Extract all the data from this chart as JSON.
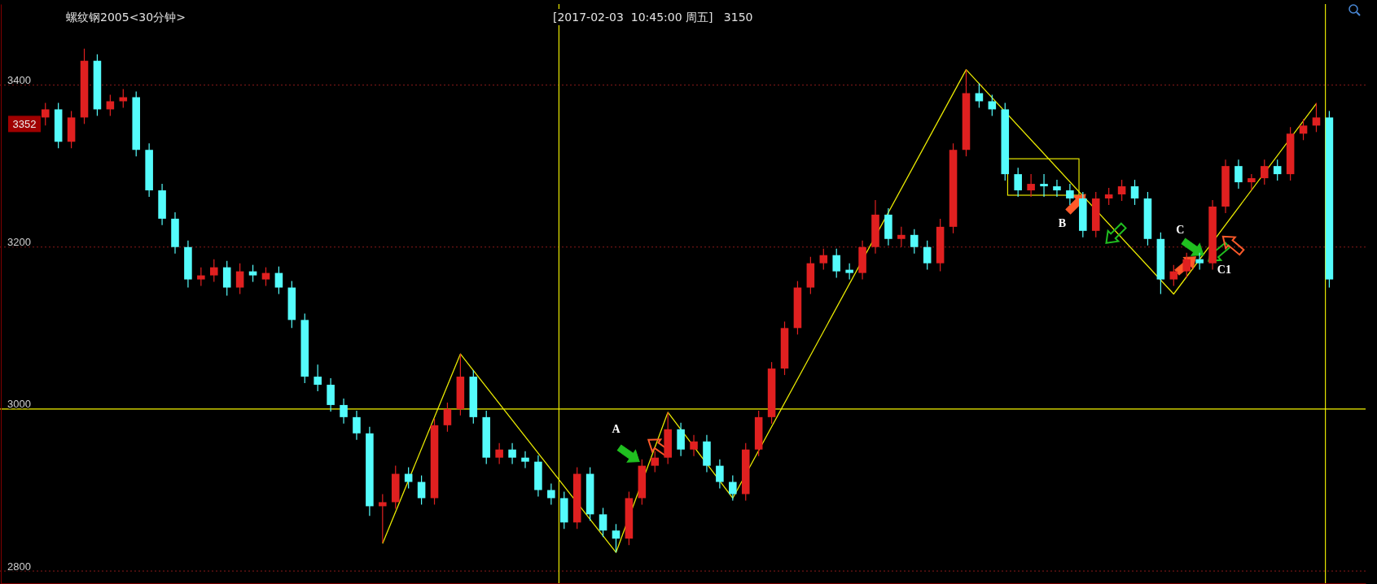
{
  "chart_data": {
    "type": "candlestick",
    "title": "螺纹钢2005<30分钟>",
    "subtitle": "[2017-02-03  10:45:00 周五]   3150",
    "categories": [
      null,
      null,
      null,
      null,
      null,
      null,
      null,
      null,
      null,
      null,
      null,
      null,
      null,
      null,
      null,
      null,
      null,
      null,
      null,
      null,
      null,
      null,
      null,
      null,
      null,
      null,
      null,
      null,
      null,
      null,
      null,
      null,
      null,
      null,
      null,
      null,
      null,
      null,
      null,
      null,
      null,
      null,
      null,
      null,
      null,
      null,
      null,
      null,
      null,
      null,
      null,
      null,
      null,
      null,
      null,
      null,
      null,
      null,
      null,
      null,
      null,
      null,
      null,
      null,
      null,
      null,
      null,
      null,
      null,
      null,
      null,
      null,
      null,
      null,
      null,
      null,
      null,
      null,
      null,
      null,
      null,
      null,
      null,
      null,
      null,
      null,
      null,
      null,
      null,
      null,
      null,
      null,
      null,
      null,
      null,
      null,
      null,
      null,
      null,
      null
    ],
    "ohlc": [
      [
        3360,
        3378,
        3350,
        3370
      ],
      [
        3370,
        3378,
        3322,
        3330
      ],
      [
        3330,
        3368,
        3322,
        3360
      ],
      [
        3360,
        3445,
        3352,
        3430
      ],
      [
        3430,
        3438,
        3362,
        3370
      ],
      [
        3370,
        3388,
        3362,
        3380
      ],
      [
        3380,
        3395,
        3372,
        3385
      ],
      [
        3385,
        3392,
        3312,
        3320
      ],
      [
        3320,
        3328,
        3262,
        3270
      ],
      [
        3270,
        3278,
        3227,
        3235
      ],
      [
        3235,
        3243,
        3192,
        3200
      ],
      [
        3200,
        3208,
        3150,
        3160
      ],
      [
        3160,
        3175,
        3152,
        3165
      ],
      [
        3165,
        3185,
        3157,
        3175
      ],
      [
        3175,
        3183,
        3140,
        3150
      ],
      [
        3150,
        3180,
        3142,
        3170
      ],
      [
        3170,
        3178,
        3157,
        3165
      ],
      [
        3160,
        3175,
        3152,
        3168
      ],
      [
        3168,
        3176,
        3142,
        3150
      ],
      [
        3150,
        3158,
        3100,
        3110
      ],
      [
        3110,
        3118,
        3032,
        3040
      ],
      [
        3040,
        3055,
        3022,
        3030
      ],
      [
        3030,
        3038,
        2997,
        3005
      ],
      [
        3005,
        3013,
        2982,
        2990
      ],
      [
        2990,
        2998,
        2962,
        2970
      ],
      [
        2970,
        2978,
        2868,
        2880
      ],
      [
        2880,
        2895,
        2835,
        2885
      ],
      [
        2885,
        2930,
        2877,
        2920
      ],
      [
        2920,
        2928,
        2902,
        2910
      ],
      [
        2910,
        2918,
        2882,
        2890
      ],
      [
        2890,
        2988,
        2882,
        2980
      ],
      [
        2980,
        3008,
        2972,
        3000
      ],
      [
        3000,
        3068,
        2992,
        3040
      ],
      [
        3040,
        3048,
        2982,
        2990
      ],
      [
        2990,
        2998,
        2932,
        2940
      ],
      [
        2940,
        2958,
        2932,
        2950
      ],
      [
        2950,
        2958,
        2932,
        2940
      ],
      [
        2940,
        2948,
        2927,
        2935
      ],
      [
        2935,
        2943,
        2892,
        2900
      ],
      [
        2900,
        2908,
        2882,
        2890
      ],
      [
        2890,
        2898,
        2852,
        2860
      ],
      [
        2860,
        2928,
        2852,
        2920
      ],
      [
        2920,
        2928,
        2862,
        2870
      ],
      [
        2870,
        2878,
        2842,
        2850
      ],
      [
        2850,
        2858,
        2823,
        2840
      ],
      [
        2840,
        2898,
        2832,
        2890
      ],
      [
        2890,
        2938,
        2882,
        2930
      ],
      [
        2930,
        2948,
        2922,
        2940
      ],
      [
        2940,
        2996,
        2932,
        2975
      ],
      [
        2975,
        2983,
        2942,
        2950
      ],
      [
        2950,
        2968,
        2942,
        2960
      ],
      [
        2960,
        2968,
        2922,
        2930
      ],
      [
        2930,
        2938,
        2902,
        2910
      ],
      [
        2910,
        2918,
        2887,
        2895
      ],
      [
        2895,
        2958,
        2887,
        2950
      ],
      [
        2950,
        2998,
        2942,
        2990
      ],
      [
        2990,
        3058,
        2982,
        3050
      ],
      [
        3050,
        3108,
        3042,
        3100
      ],
      [
        3100,
        3158,
        3092,
        3150
      ],
      [
        3150,
        3188,
        3142,
        3180
      ],
      [
        3180,
        3198,
        3172,
        3190
      ],
      [
        3190,
        3198,
        3162,
        3170
      ],
      [
        3172,
        3180,
        3160,
        3168
      ],
      [
        3168,
        3208,
        3160,
        3200
      ],
      [
        3200,
        3258,
        3192,
        3240
      ],
      [
        3240,
        3248,
        3202,
        3210
      ],
      [
        3210,
        3225,
        3200,
        3215
      ],
      [
        3215,
        3222,
        3192,
        3200
      ],
      [
        3200,
        3208,
        3172,
        3180
      ],
      [
        3180,
        3235,
        3170,
        3225
      ],
      [
        3225,
        3328,
        3217,
        3320
      ],
      [
        3320,
        3419,
        3312,
        3390
      ],
      [
        3390,
        3402,
        3372,
        3380
      ],
      [
        3380,
        3388,
        3362,
        3370
      ],
      [
        3370,
        3378,
        3282,
        3290
      ],
      [
        3290,
        3298,
        3262,
        3270
      ],
      [
        3270,
        3290,
        3262,
        3278
      ],
      [
        3278,
        3290,
        3262,
        3275
      ],
      [
        3275,
        3283,
        3262,
        3270
      ],
      [
        3270,
        3278,
        3252,
        3260
      ],
      [
        3260,
        3268,
        3212,
        3220
      ],
      [
        3220,
        3268,
        3212,
        3260
      ],
      [
        3260,
        3273,
        3252,
        3265
      ],
      [
        3265,
        3283,
        3257,
        3275
      ],
      [
        3275,
        3283,
        3252,
        3260
      ],
      [
        3260,
        3268,
        3202,
        3210
      ],
      [
        3210,
        3218,
        3142,
        3160
      ],
      [
        3160,
        3178,
        3152,
        3170
      ],
      [
        3170,
        3193,
        3162,
        3185
      ],
      [
        3185,
        3193,
        3172,
        3180
      ],
      [
        3180,
        3258,
        3172,
        3250
      ],
      [
        3250,
        3308,
        3242,
        3300
      ],
      [
        3300,
        3308,
        3272,
        3280
      ],
      [
        3280,
        3290,
        3270,
        3285
      ],
      [
        3285,
        3308,
        3277,
        3300
      ],
      [
        3300,
        3308,
        3282,
        3290
      ],
      [
        3290,
        3348,
        3282,
        3340
      ],
      [
        3340,
        3358,
        3332,
        3350
      ],
      [
        3350,
        3378,
        3342,
        3360
      ],
      [
        3360,
        3368,
        3150,
        3160
      ]
    ],
    "colors": [
      "#e02020",
      "#54fcfc",
      "#e02020",
      "#e02020",
      "#54fcfc",
      "#e02020",
      "#e02020",
      "#54fcfc",
      "#54fcfc",
      "#54fcfc",
      "#54fcfc",
      "#54fcfc",
      "#e02020",
      "#e02020",
      "#54fcfc",
      "#e02020",
      "#54fcfc",
      "#e02020",
      "#54fcfc",
      "#54fcfc",
      "#54fcfc",
      "#54fcfc",
      "#54fcfc",
      "#54fcfc",
      "#54fcfc",
      "#54fcfc",
      "#e02020",
      "#e02020",
      "#54fcfc",
      "#54fcfc",
      "#e02020",
      "#e02020",
      "#e02020",
      "#54fcfc",
      "#54fcfc",
      "#e02020",
      "#54fcfc",
      "#54fcfc",
      "#54fcfc",
      "#54fcfc",
      "#54fcfc",
      "#e02020",
      "#54fcfc",
      "#54fcfc",
      "#54fcfc",
      "#e02020",
      "#e02020",
      "#e02020",
      "#e02020",
      "#54fcfc",
      "#e02020",
      "#54fcfc",
      "#54fcfc",
      "#54fcfc",
      "#e02020",
      "#e02020",
      "#e02020",
      "#e02020",
      "#e02020",
      "#e02020",
      "#e02020",
      "#54fcfc",
      "#54fcfc",
      "#e02020",
      "#e02020",
      "#54fcfc",
      "#e02020",
      "#54fcfc",
      "#54fcfc",
      "#e02020",
      "#e02020",
      "#e02020",
      "#54fcfc",
      "#54fcfc",
      "#54fcfc",
      "#54fcfc",
      "#e02020",
      "#54fcfc",
      "#54fcfc",
      "#54fcfc",
      "#54fcfc",
      "#e02020",
      "#e02020",
      "#e02020",
      "#54fcfc",
      "#54fcfc",
      "#54fcfc",
      "#e02020",
      "#e02020",
      "#54fcfc",
      "#e02020",
      "#e02020",
      "#54fcfc",
      "#e02020",
      "#e02020",
      "#54fcfc",
      "#e02020",
      "#e02020",
      "#e02020",
      "#54fcfc"
    ],
    "series": [
      {
        "type": "line",
        "color": "#e8e800",
        "values": [
          null,
          null,
          null,
          null,
          null,
          null,
          null,
          null,
          null,
          null,
          null,
          null,
          null,
          null,
          null,
          null,
          null,
          null,
          null,
          null,
          null,
          null,
          null,
          null,
          null,
          null,
          2834,
          null,
          null,
          null,
          null,
          null,
          3068,
          null,
          null,
          null,
          null,
          null,
          null,
          null,
          null,
          null,
          null,
          null,
          2823,
          null,
          null,
          null,
          2996,
          null,
          null,
          null,
          null,
          2890,
          null,
          null,
          null,
          null,
          null,
          null,
          null,
          null,
          null,
          null,
          null,
          null,
          null,
          null,
          null,
          null,
          null,
          3419,
          null,
          null,
          null,
          null,
          null,
          null,
          null,
          null,
          null,
          null,
          null,
          null,
          null,
          null,
          null,
          3142,
          null,
          null,
          null,
          null,
          null,
          null,
          null,
          null,
          null,
          null,
          3377,
          null
        ]
      }
    ],
    "ylim": [
      2785,
      3500
    ],
    "yticks": [
      2800,
      3000,
      3200,
      3400
    ],
    "tick_labels": "y",
    "grid": "y",
    "marker": "none",
    "line_style": "solid",
    "ref_lines": [
      {
        "axis": "y",
        "value": 3000,
        "color": "#f5f500"
      }
    ],
    "annotations": [
      {
        "text": "3352",
        "y": 3352
      },
      "A",
      "B",
      "C",
      "C1"
    ]
  }
}
